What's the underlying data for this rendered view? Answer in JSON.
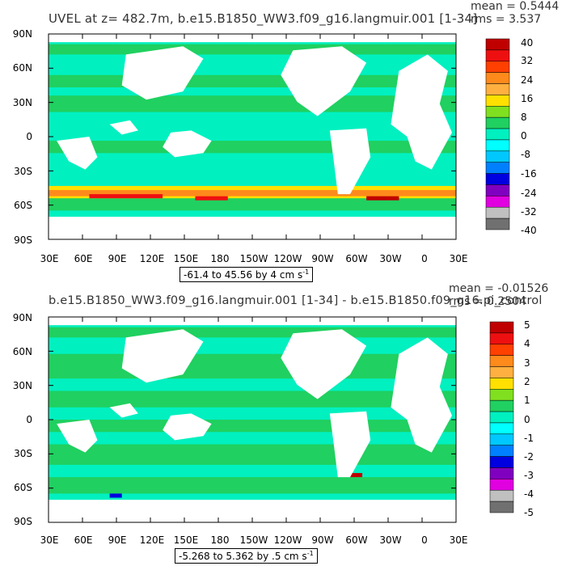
{
  "panels": [
    {
      "title": "UVEL at z= 482.7m, b.e15.B1850_WW3.f09_g16.langmuir.001 [1-34]",
      "mean_text": "mean = 0.5444",
      "rms_text": "rms = 3.537",
      "range_label": "-61.4 to 45.56 by 4 cm s",
      "range_sup": "-1",
      "colorbar_labels": [
        "40",
        "32",
        "24",
        "16",
        "8",
        "0",
        "-8",
        "-16",
        "-24",
        "-32",
        "-40"
      ]
    },
    {
      "title": "b.e15.B1850_WW3.f09_g16.langmuir.001 [1-34] - b.e15.B1850.f09_g16.pi_control",
      "mean_text": "mean = -0.01526",
      "rms_text": "rms = 0.2504",
      "range_label": "-5.268 to 5.362 by .5 cm s",
      "range_sup": "-1",
      "colorbar_labels": [
        "5",
        "4",
        "3",
        "2",
        "1",
        "0",
        "-1",
        "-2",
        "-3",
        "-4",
        "-5"
      ]
    }
  ],
  "lat_labels": [
    "90N",
    "60N",
    "30N",
    "0",
    "30S",
    "60S",
    "90S"
  ],
  "lon_labels": [
    "30E",
    "60E",
    "90E",
    "120E",
    "150E",
    "180",
    "150W",
    "120W",
    "90W",
    "60W",
    "30W",
    "0",
    "30E"
  ],
  "colors": {
    "colorbar": [
      "#c00000",
      "#ee1010",
      "#ff4000",
      "#ff8a1c",
      "#ffb040",
      "#ffe000",
      "#80e020",
      "#20d060",
      "#00f0c0",
      "#00ffff",
      "#00c8ff",
      "#0080ff",
      "#0000e0",
      "#8000c0",
      "#e000e0",
      "#c0c0c0",
      "#707070"
    ],
    "land": "#ffffff",
    "ocean_main": "#00f0c0",
    "ocean_alt": "#20d060"
  },
  "chart_data": [
    {
      "type": "heatmap",
      "title": "UVEL at z= 482.7m, b.e15.B1850_WW3.f09_g16.langmuir.001 [1-34]",
      "xlabel": "",
      "ylabel": "",
      "x_ticks": [
        "30E",
        "60E",
        "90E",
        "120E",
        "150E",
        "180",
        "150W",
        "120W",
        "90W",
        "60W",
        "30W",
        "0",
        "30E"
      ],
      "y_ticks": [
        "90N",
        "60N",
        "30N",
        "0",
        "30S",
        "60S",
        "90S"
      ],
      "colorbar_levels": [
        40,
        32,
        24,
        16,
        8,
        0,
        -8,
        -16,
        -24,
        -32,
        -40
      ],
      "value_range": [
        -61.4,
        45.56
      ],
      "contour_interval": 4,
      "units": "cm s-1",
      "mean": 0.5444,
      "rms": 3.537
    },
    {
      "type": "heatmap",
      "title": "b.e15.B1850_WW3.f09_g16.langmuir.001 [1-34] - b.e15.B1850.f09_g16.pi_control",
      "xlabel": "",
      "ylabel": "",
      "x_ticks": [
        "30E",
        "60E",
        "90E",
        "120E",
        "150E",
        "180",
        "150W",
        "120W",
        "90W",
        "60W",
        "30W",
        "0",
        "30E"
      ],
      "y_ticks": [
        "90N",
        "60N",
        "30N",
        "0",
        "30S",
        "60S",
        "90S"
      ],
      "colorbar_levels": [
        5,
        4,
        3,
        2,
        1,
        0,
        -1,
        -2,
        -3,
        -4,
        -5
      ],
      "value_range": [
        -5.268,
        5.362
      ],
      "contour_interval": 0.5,
      "units": "cm s-1",
      "mean": -0.01526,
      "rms": 0.2504
    }
  ]
}
